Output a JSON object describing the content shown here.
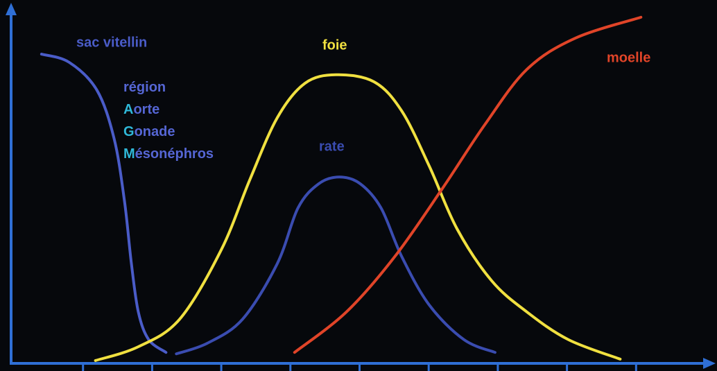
{
  "chart_data": {
    "type": "line",
    "xlim": [
      -1,
      9.1
    ],
    "ylim": [
      0,
      100
    ],
    "xticks": [
      0,
      1,
      2,
      3,
      4,
      5,
      6,
      7,
      8
    ],
    "annotations": [
      "région",
      "Aorte",
      "Gonade",
      "Mésonéphros"
    ],
    "series": [
      {
        "name": "sac vitellin",
        "color": "#4a5cc8",
        "x": [
          -0.6,
          -0.2,
          0.2,
          0.45,
          0.6,
          0.7,
          0.8,
          0.95,
          1.2
        ],
        "values": [
          86.7,
          84.4,
          76.6,
          62.9,
          45.3,
          27.7,
          14.1,
          6.3,
          2.7
        ]
      },
      {
        "name": "foie",
        "color": "#f0e040",
        "x": [
          0.18,
          0.8,
          1.4,
          2.0,
          2.41,
          2.81,
          3.21,
          3.66,
          4.21,
          4.61,
          5.01,
          5.41,
          5.91,
          6.42,
          7.02,
          7.77
        ],
        "values": [
          0.4,
          4.3,
          12.1,
          31.6,
          51.2,
          68.8,
          78.5,
          80.9,
          78.9,
          70.7,
          55.1,
          37.5,
          22.9,
          14.1,
          6.3,
          0.8
        ]
      },
      {
        "name": "rate",
        "color": "#3a4cb0",
        "x": [
          1.35,
          1.8,
          2.31,
          2.81,
          3.11,
          3.41,
          3.71,
          4.01,
          4.31,
          4.61,
          5.01,
          5.51,
          5.96
        ],
        "values": [
          2.3,
          5.3,
          12.1,
          27.7,
          43.4,
          50.2,
          52.1,
          50.2,
          43.4,
          29.7,
          16.0,
          6.3,
          2.7
        ]
      },
      {
        "name": "moelle",
        "color": "#e04428",
        "x": [
          3.06,
          3.81,
          4.51,
          5.21,
          5.81,
          6.42,
          7.12,
          8.07
        ],
        "values": [
          2.7,
          14.1,
          29.7,
          49.2,
          66.8,
          82.4,
          91.2,
          97.1
        ]
      }
    ]
  }
}
